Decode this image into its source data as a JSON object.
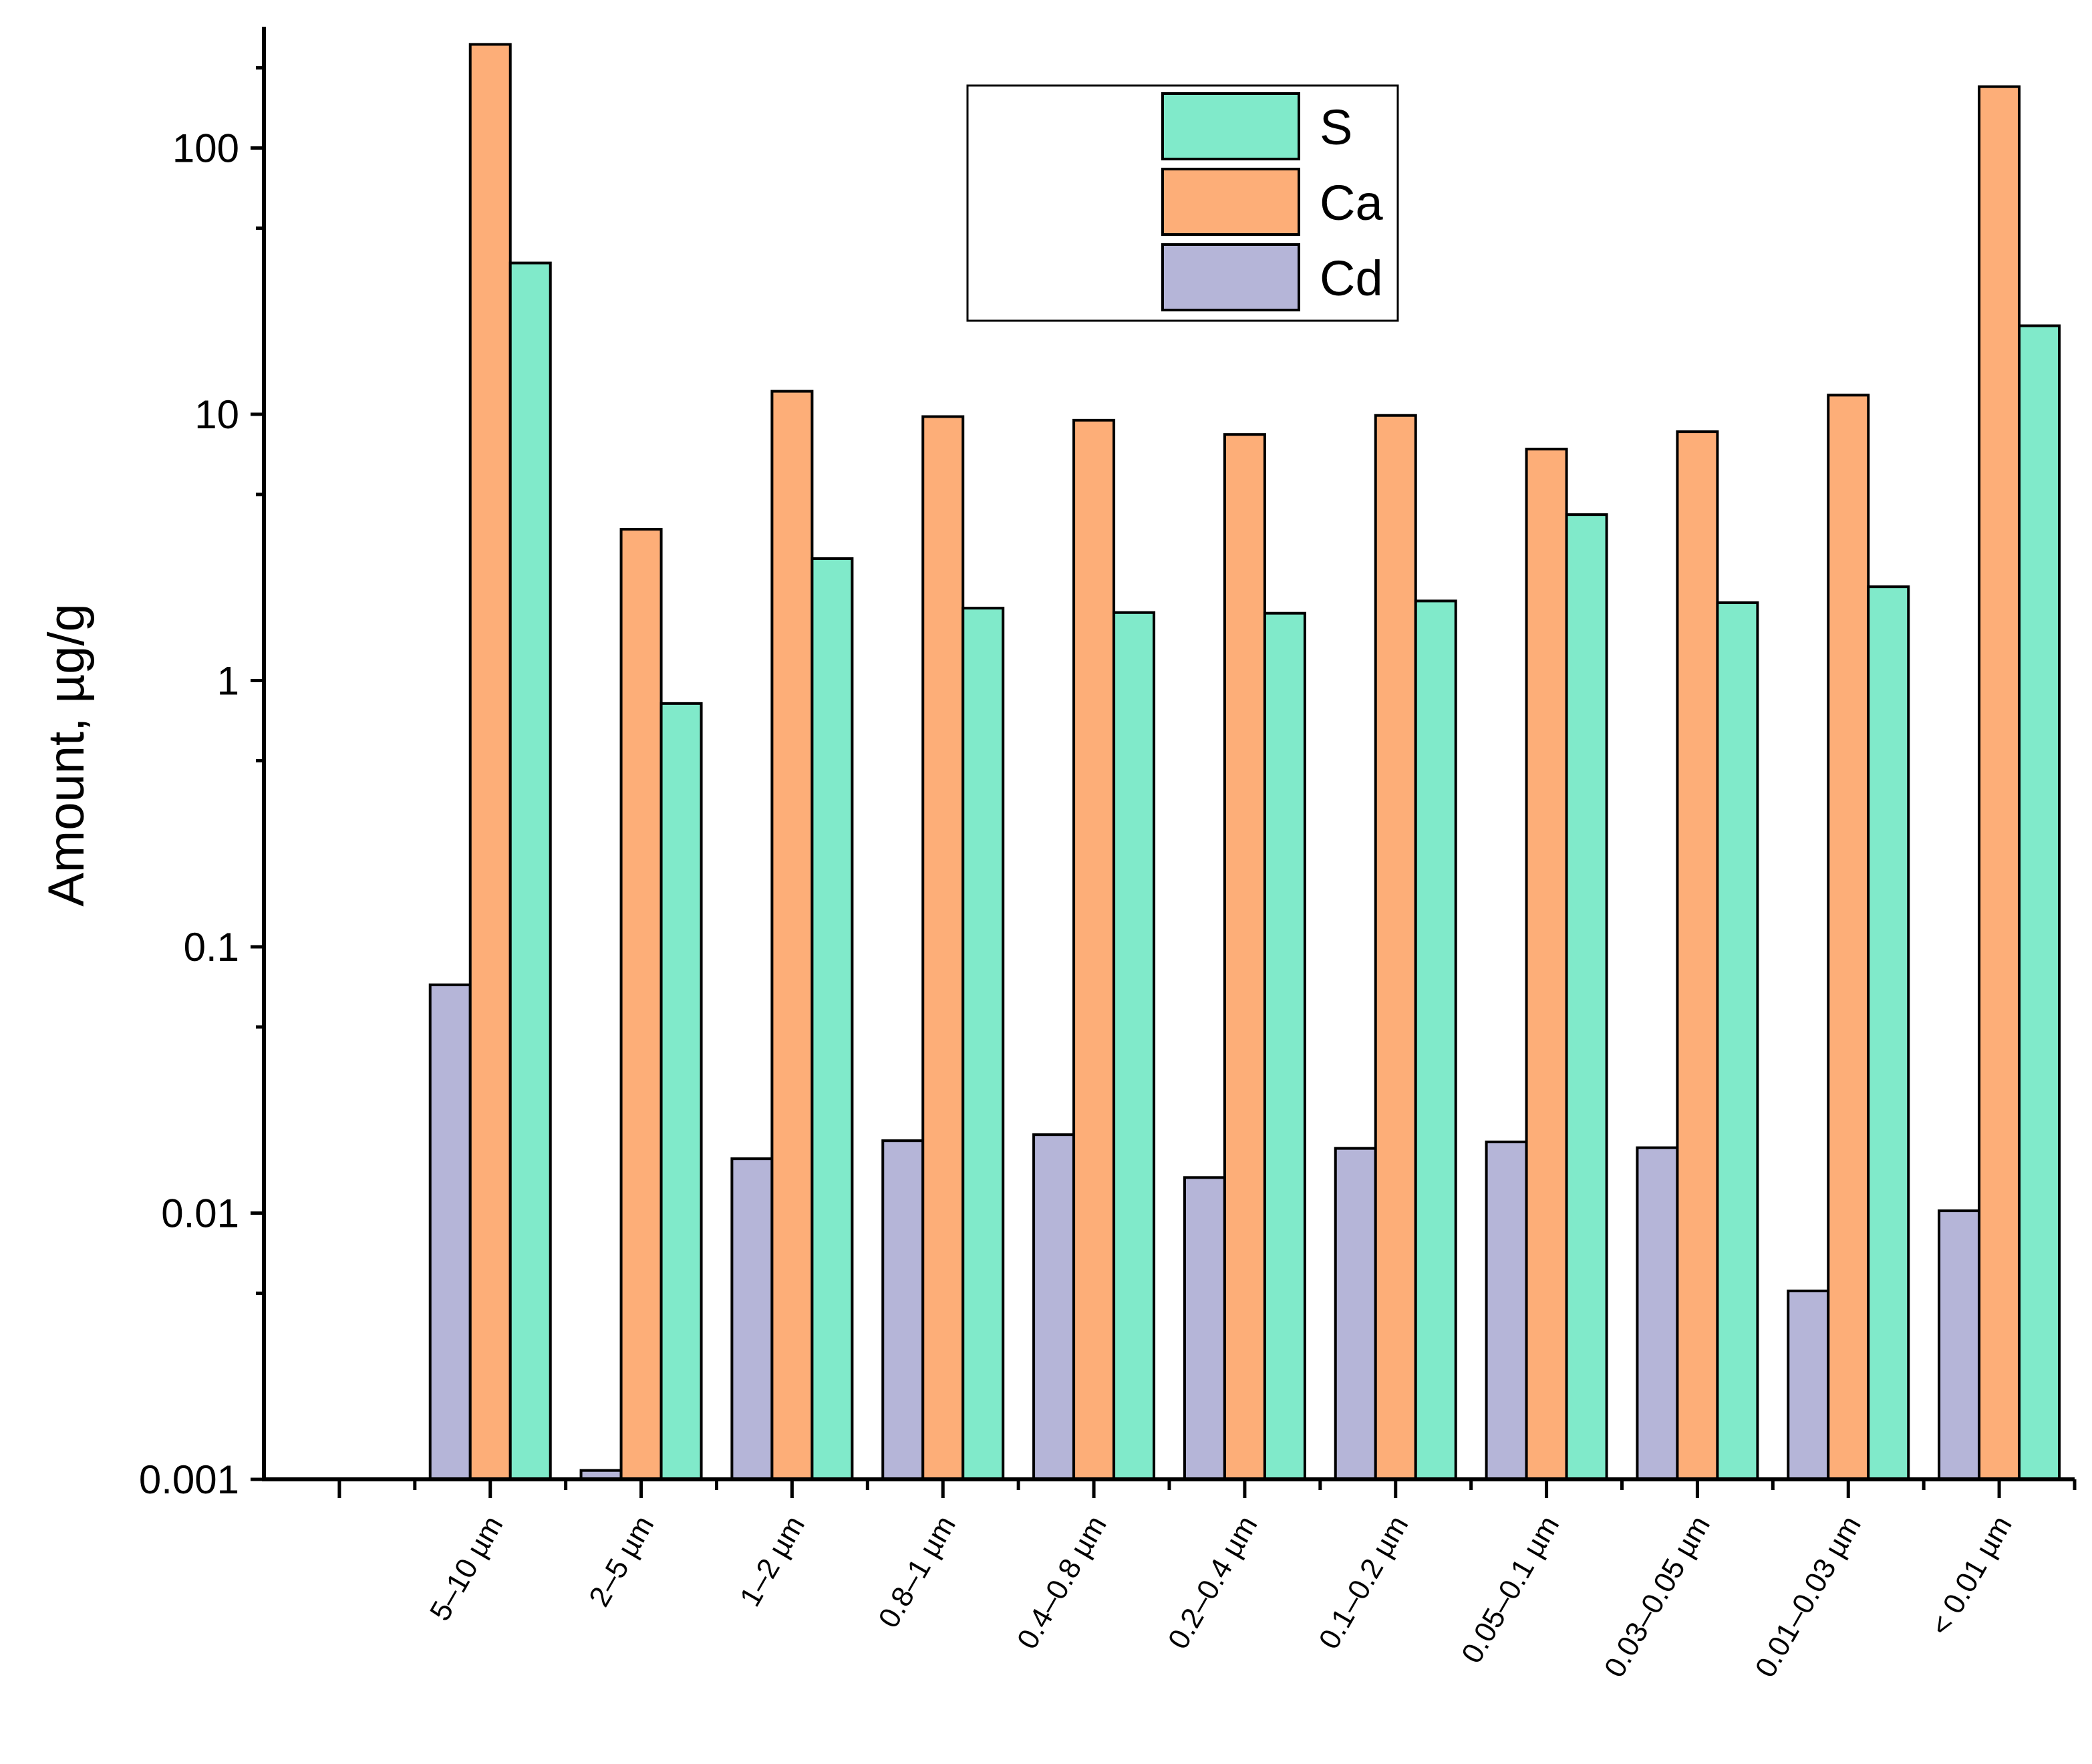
{
  "chart_data": {
    "type": "bar",
    "title": "",
    "xlabel": "",
    "ylabel": "Amount, µg/g",
    "yscale": "log",
    "ylim": [
      0.001,
      270
    ],
    "yticks": [
      {
        "value": 0.001,
        "label": "0.001"
      },
      {
        "value": 0.01,
        "label": "0.01"
      },
      {
        "value": 0.1,
        "label": "0.1"
      },
      {
        "value": 1,
        "label": "1"
      },
      {
        "value": 10,
        "label": "10"
      },
      {
        "value": 100,
        "label": "100"
      }
    ],
    "categories": [
      "",
      "5–10 µm",
      "2–5 µm",
      "1–2 µm",
      "0.8–1 µm",
      "0.4–0.8 µm",
      "0.2–0.4 µm",
      "0.1–0.2 µm",
      "0.05–0.1 µm",
      "0.03–0.05 µm",
      "0.01–0.03 µm",
      "< 0.01 µm"
    ],
    "series": [
      {
        "name": "Cd",
        "color": "#b5b5d8",
        "values": [
          null,
          0.072,
          0.00108,
          0.016,
          0.0187,
          0.0197,
          0.0136,
          0.0175,
          0.0185,
          0.0176,
          0.0051,
          0.0102
        ]
      },
      {
        "name": "Ca",
        "color": "#fdae78",
        "values": [
          null,
          245,
          3.7,
          12.2,
          9.8,
          9.5,
          8.4,
          9.9,
          7.4,
          8.6,
          11.8,
          170
        ]
      },
      {
        "name": "S",
        "color": "#80eaca",
        "values": [
          null,
          37,
          0.82,
          2.87,
          1.87,
          1.8,
          1.79,
          1.99,
          4.2,
          1.96,
          2.25,
          21.5
        ]
      }
    ],
    "legend": {
      "position": "top-center",
      "order": [
        "S",
        "Ca",
        "Cd"
      ]
    }
  }
}
